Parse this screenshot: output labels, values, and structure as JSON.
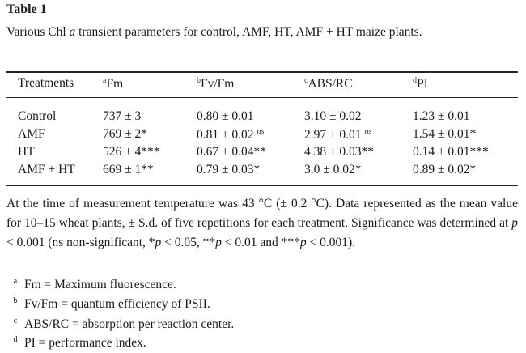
{
  "title": "Table 1",
  "caption": [
    "Various Chl ",
    "a",
    " transient parameters for control, AMF, HT, AMF + HT maize plants."
  ],
  "table": {
    "header": [
      {
        "sup": "",
        "label": "Treatments"
      },
      {
        "sup": "a",
        "label": "Fm"
      },
      {
        "sup": "b",
        "label": "Fv/Fm"
      },
      {
        "sup": "c",
        "label": "ABS/RC"
      },
      {
        "sup": "d",
        "label": "PI"
      }
    ],
    "rows": [
      [
        "Control",
        "737 ± 3",
        "0.80 ± 0.01",
        "3.10 ± 0.02",
        "1.23 ± 0.01"
      ],
      [
        "AMF",
        "769 ± 2*",
        {
          "text": "0.81 ± 0.02",
          "sup": "ns"
        },
        {
          "text": "2.97 ± 0.01",
          "sup": "ns"
        },
        "1.54 ± 0.01*"
      ],
      [
        "HT",
        "526 ± 4***",
        "0.67 ± 0.04**",
        "4.38 ± 0.03**",
        "0.14 ± 0.01***"
      ],
      [
        "AMF + HT",
        "669 ± 1**",
        "0.79 ± 0.03*",
        "3.0 ± 0.02*",
        "0.89 ± 0.02*"
      ]
    ]
  },
  "paragraph": [
    "At the time of measurement temperature was 43 °C (± 0.2 °C). Data represented as the mean value for 10–15 wheat plants, ± S.d. of five repetitions for each treatment. Significance was determined at ",
    "p",
    " <  0.001 (ns non-significant, *",
    "p",
    " < 0.05, **",
    "p",
    " < 0.01 and ***",
    "p",
    " < 0.001)."
  ],
  "footnotes": [
    {
      "mark": "a",
      "text": "Fm = Maximum fluorescence."
    },
    {
      "mark": "b",
      "text": "Fv/Fm = quantum efficiency of PSII."
    },
    {
      "mark": "c",
      "text": "ABS/RC = absorption per reaction center."
    },
    {
      "mark": "d",
      "text": "PI = performance index."
    }
  ]
}
